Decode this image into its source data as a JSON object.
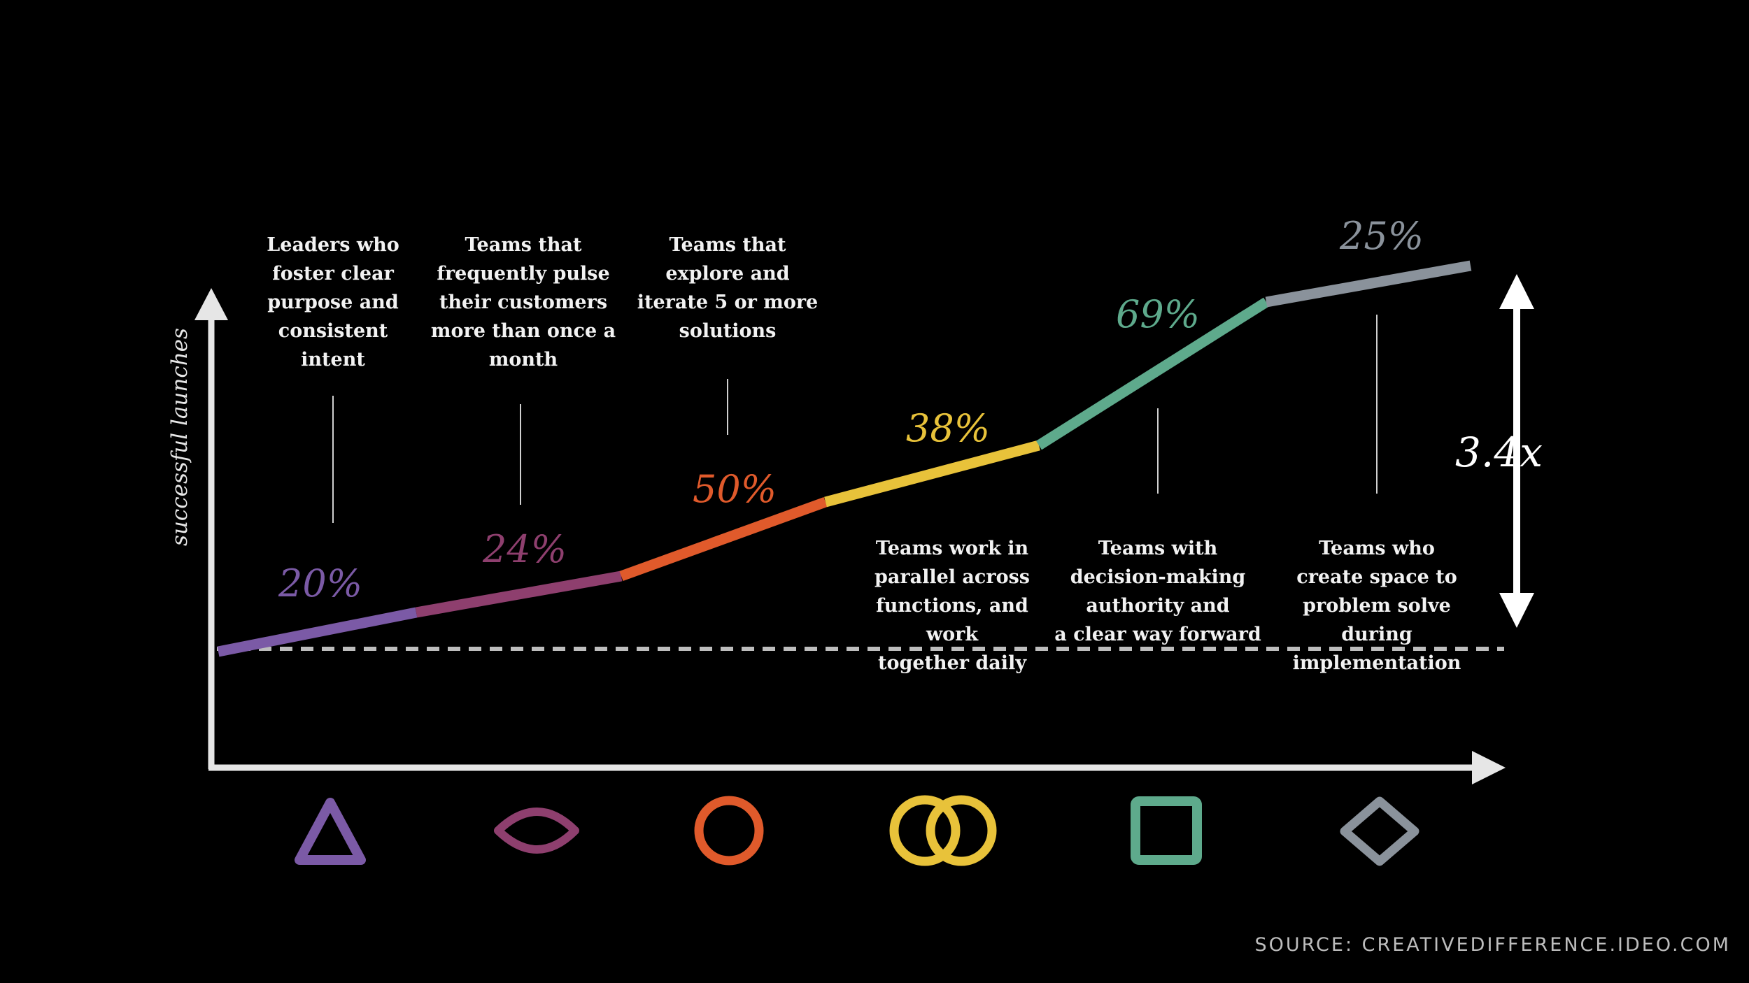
{
  "chart_data": {
    "type": "line",
    "ylabel": "successful launches",
    "ratio_label": "3.4x",
    "source": "SOURCE: CREATIVEDIFFERENCE.IDEO.COM",
    "segments": [
      {
        "value_label": "20%",
        "color": "#7b5aa6",
        "icon": "triangle-icon",
        "note": "Leaders who\nfoster  clear\npurpose and\nconsistent\nintent",
        "note_position": "above"
      },
      {
        "value_label": "24%",
        "color": "#8e3f6e",
        "icon": "eye-icon",
        "note": "Teams that\nfrequently pulse\ntheir customers\nmore than once a\nmonth",
        "note_position": "above"
      },
      {
        "value_label": "50%",
        "color": "#e05a2b",
        "icon": "circle-icon",
        "note": "Teams that\nexplore and\niterate 5 or more\nsolutions",
        "note_position": "above"
      },
      {
        "value_label": "38%",
        "color": "#e8c23a",
        "icon": "linked-rings-icon",
        "note": "Teams work in\nparallel across\nfunctions, and work\ntogether daily",
        "note_position": "below"
      },
      {
        "value_label": "69%",
        "color": "#5eaa8c",
        "icon": "square-icon",
        "note": "Teams with\ndecision-making\nauthority and\na clear way forward",
        "note_position": "below"
      },
      {
        "value_label": "25%",
        "color": "#8a929b",
        "icon": "diamond-icon",
        "note": "Teams who\ncreate space to\nproblem solve during\nimplementation",
        "note_position": "below"
      }
    ]
  }
}
